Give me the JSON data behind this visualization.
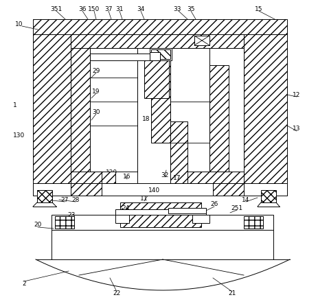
{
  "bg_color": "#ffffff",
  "line_color": "#000000",
  "fig_width": 4.64,
  "fig_height": 4.43,
  "dpi": 100
}
